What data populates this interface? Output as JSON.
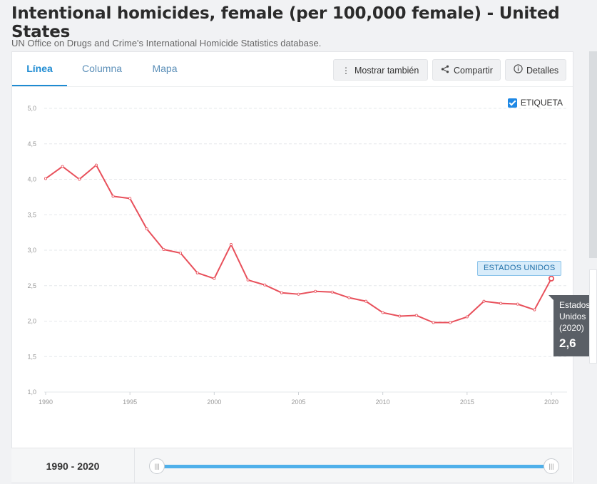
{
  "title": "Intentional homicides, female (per 100,000 female) - United States",
  "subtitle": "UN Office on Drugs and Crime's International Homicide Statistics database.",
  "tabs": [
    {
      "label": "Línea",
      "active": true
    },
    {
      "label": "Columna",
      "active": false
    },
    {
      "label": "Mapa",
      "active": false
    }
  ],
  "toolbar": {
    "more_label": "Mostrar también",
    "share_label": "Compartir",
    "details_label": "Detalles",
    "more_icon": "vertical-dots-icon",
    "share_icon": "share-icon",
    "details_icon": "info-icon"
  },
  "label_toggle": {
    "label": "ETIQUETA",
    "checked": true
  },
  "series_badge": "ESTADOS UNIDOS",
  "tooltip": {
    "line1": "Estados",
    "line2": "Unidos",
    "line3": "(2020)",
    "value": "2,6"
  },
  "range": {
    "label": "1990 - 2020"
  },
  "colors": {
    "line": "#e8505b",
    "accent": "#1e8bd2",
    "slider": "#4fb0ea"
  },
  "chart_data": {
    "type": "line",
    "xlim": [
      1990,
      2020
    ],
    "ylim": [
      1.0,
      5.0
    ],
    "x_ticks": [
      "1990",
      "1995",
      "2000",
      "2005",
      "2010",
      "2015",
      "2020"
    ],
    "y_ticks": [
      "1,0",
      "1,5",
      "2,0",
      "2,5",
      "3,0",
      "3,5",
      "4,0",
      "4,5",
      "5,0"
    ],
    "grid": true,
    "series": [
      {
        "name": "ESTADOS UNIDOS",
        "x": [
          1990,
          1991,
          1992,
          1993,
          1994,
          1995,
          1996,
          1997,
          1998,
          1999,
          2000,
          2001,
          2002,
          2003,
          2004,
          2005,
          2006,
          2007,
          2008,
          2009,
          2010,
          2011,
          2012,
          2013,
          2014,
          2015,
          2016,
          2017,
          2018,
          2019,
          2020
        ],
        "values": [
          4.01,
          4.18,
          4.0,
          4.2,
          3.76,
          3.73,
          3.3,
          3.01,
          2.96,
          2.68,
          2.6,
          3.08,
          2.58,
          2.51,
          2.4,
          2.38,
          2.42,
          2.41,
          2.33,
          2.28,
          2.12,
          2.07,
          2.08,
          1.98,
          1.98,
          2.06,
          2.28,
          2.25,
          2.24,
          2.16,
          2.6
        ]
      }
    ]
  }
}
